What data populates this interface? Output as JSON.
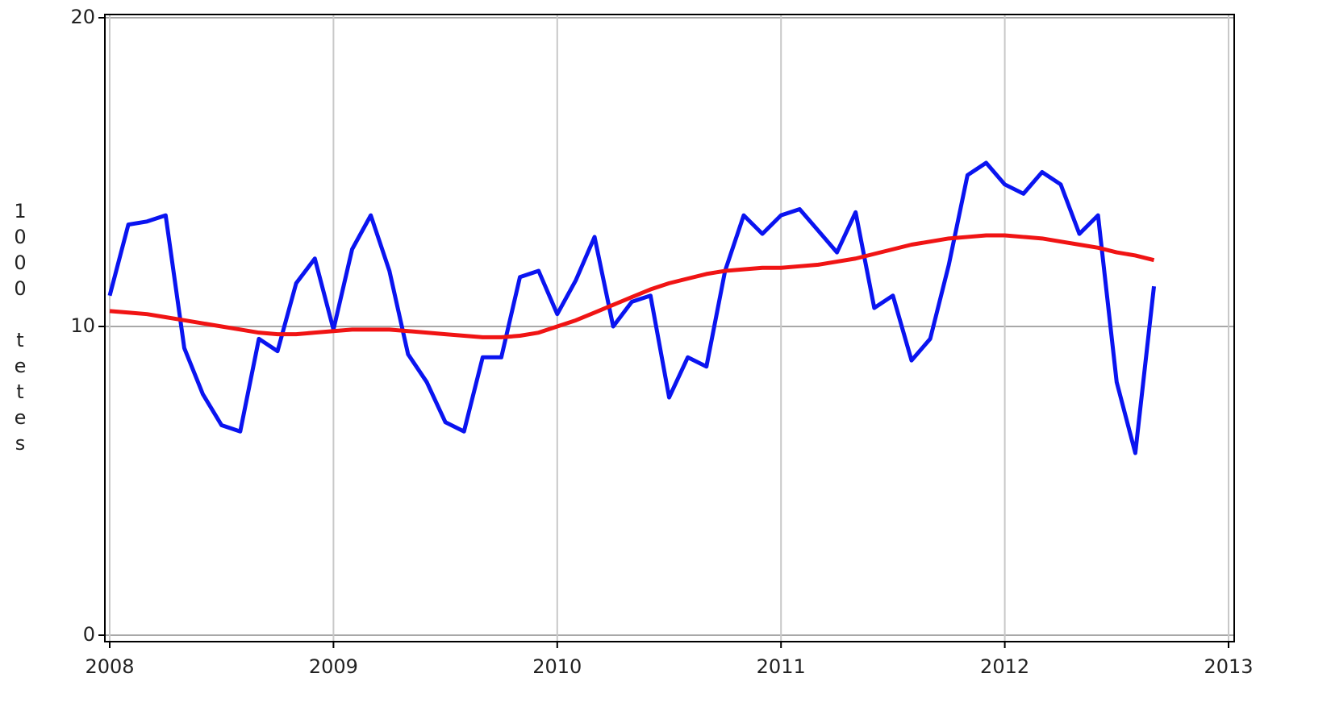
{
  "chart_data": {
    "type": "line",
    "ylabel": "1000 tetes",
    "x": [
      2008,
      2008.0833,
      2008.1667,
      2008.25,
      2008.3333,
      2008.4167,
      2008.5,
      2008.5833,
      2008.6667,
      2008.75,
      2008.8333,
      2008.9167,
      2009,
      2009.0833,
      2009.1667,
      2009.25,
      2009.3333,
      2009.4167,
      2009.5,
      2009.5833,
      2009.6667,
      2009.75,
      2009.8333,
      2009.9167,
      2010,
      2010.0833,
      2010.1667,
      2010.25,
      2010.3333,
      2010.4167,
      2010.5,
      2010.5833,
      2010.6667,
      2010.75,
      2010.8333,
      2010.9167,
      2011,
      2011.0833,
      2011.1667,
      2011.25,
      2011.3333,
      2011.4167,
      2011.5,
      2011.5833,
      2011.6667,
      2011.75,
      2011.8333,
      2011.9167,
      2012,
      2012.0833,
      2012.1667,
      2012.25,
      2012.3333,
      2012.4167,
      2012.5,
      2012.5833,
      2012.6667
    ],
    "series": [
      {
        "color": "#0a14f0",
        "values": [
          11.0,
          13.3,
          13.4,
          13.6,
          9.3,
          7.8,
          6.8,
          6.6,
          9.6,
          9.2,
          11.4,
          12.2,
          9.9,
          12.5,
          13.6,
          11.8,
          9.1,
          8.2,
          6.9,
          6.6,
          9.0,
          9.0,
          11.6,
          11.8,
          10.4,
          11.5,
          12.9,
          10.0,
          10.8,
          11.0,
          7.7,
          9.0,
          8.7,
          11.8,
          13.6,
          13.0,
          13.6,
          13.8,
          13.1,
          12.4,
          13.7,
          10.6,
          11.0,
          8.9,
          9.6,
          12.0,
          14.9,
          15.3,
          14.6,
          14.3,
          15.0,
          14.6,
          13.0,
          13.6,
          8.2,
          5.9,
          11.3
        ]
      },
      {
        "color": "#f01414",
        "values": [
          10.5,
          10.45,
          10.4,
          10.3,
          10.2,
          10.1,
          10.0,
          9.9,
          9.8,
          9.75,
          9.75,
          9.8,
          9.85,
          9.9,
          9.9,
          9.9,
          9.85,
          9.8,
          9.75,
          9.7,
          9.65,
          9.65,
          9.7,
          9.8,
          10.0,
          10.2,
          10.45,
          10.7,
          10.95,
          11.2,
          11.4,
          11.55,
          11.7,
          11.8,
          11.85,
          11.9,
          11.9,
          11.95,
          12.0,
          12.1,
          12.2,
          12.35,
          12.5,
          12.65,
          12.75,
          12.85,
          12.9,
          12.95,
          12.95,
          12.9,
          12.85,
          12.75,
          12.65,
          12.55,
          12.4,
          12.3,
          12.15
        ]
      }
    ],
    "xlim": [
      2008,
      2013
    ],
    "xticks": [
      2008,
      2009,
      2010,
      2011,
      2012,
      2013
    ],
    "ylim": [
      0,
      20
    ],
    "yticks": [
      0,
      10,
      20
    ],
    "grid": true
  }
}
